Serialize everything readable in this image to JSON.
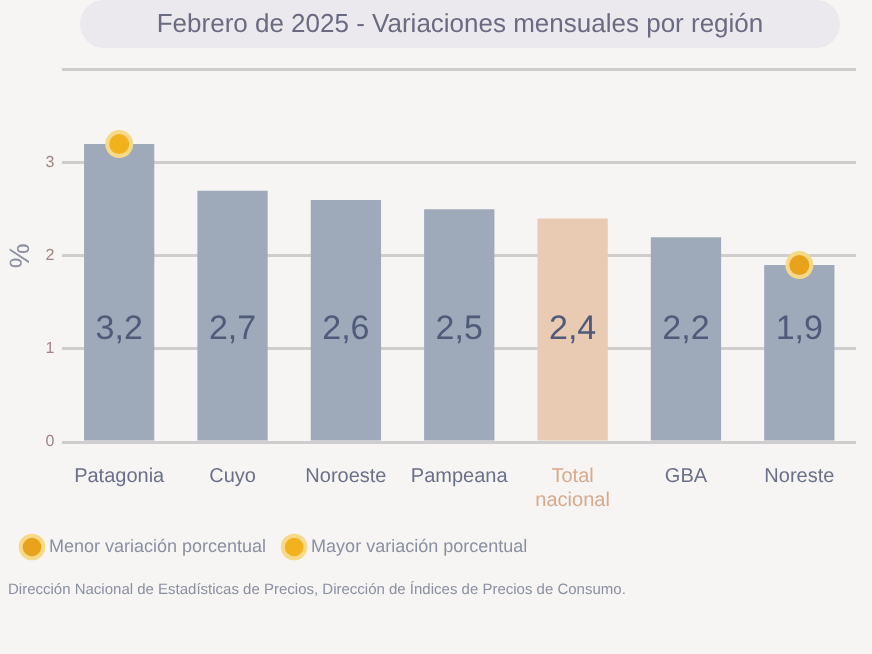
{
  "chart_data": {
    "type": "bar",
    "title": "Febrero de 2025 - Variaciones mensuales por región",
    "ylabel": "%",
    "categories": [
      "Patagonia",
      "Cuyo",
      "Noroeste",
      "Pampeana",
      "Total nacional",
      "GBA",
      "Noreste"
    ],
    "values": [
      3.2,
      2.7,
      2.6,
      2.5,
      2.4,
      2.2,
      1.9
    ],
    "colors": [
      "#9eaaba",
      "#9eaaba",
      "#9eaaba",
      "#9eaaba",
      "#e9cbb3",
      "#9eaaba",
      "#9eaaba"
    ],
    "value_labels": [
      "3,2",
      "2,7",
      "2,6",
      "2,5",
      "2,4",
      "2,2",
      "1,9"
    ],
    "series": [
      {
        "type": "scatter",
        "name": "Menor variación porcentual",
        "color": "#e9a21c",
        "x": [
          "Noreste"
        ],
        "values": [
          1.9
        ]
      },
      {
        "type": "scatter",
        "name": "Mayor variación porcentual",
        "color": "#f2b21e",
        "x": [
          "Patagonia"
        ],
        "values": [
          3.2
        ]
      }
    ],
    "ylim": [
      0,
      4
    ],
    "yticks": [
      0,
      1,
      2,
      3,
      {
        "value": 4,
        "label": null
      }
    ],
    "grid": "y",
    "legend": "bottom left",
    "marker": "circle",
    "annotations": [
      "Dirección Nacional de Estadísticas de Precios, Dirección de Índices de Precios de Consumo."
    ]
  }
}
